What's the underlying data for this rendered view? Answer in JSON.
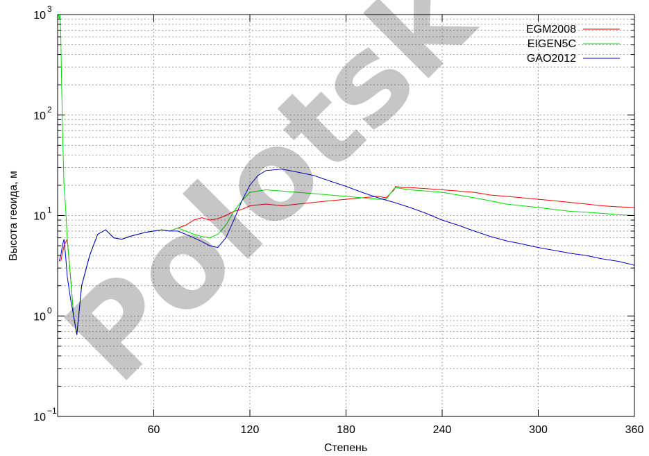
{
  "chart_data": {
    "type": "line",
    "title": "",
    "xlabel": "Степень",
    "ylabel": "Высота геоида, м",
    "xlim": [
      0,
      360
    ],
    "ylim": [
      0.1,
      1000
    ],
    "yscale": "log",
    "grid": true,
    "legend_position": "top-right",
    "x_ticks": [
      60,
      120,
      180,
      240,
      300,
      360
    ],
    "y_ticks": [
      {
        "value": 0.1,
        "base": "10",
        "exp": "−1"
      },
      {
        "value": 1,
        "base": "10",
        "exp": "0"
      },
      {
        "value": 10,
        "base": "10",
        "exp": "1"
      },
      {
        "value": 100,
        "base": "10",
        "exp": "2"
      },
      {
        "value": 1000,
        "base": "10",
        "exp": "3"
      }
    ],
    "series": [
      {
        "name": "EGM2008",
        "color": "#ff0000",
        "x": [
          2,
          4,
          6,
          8,
          10,
          12,
          15,
          20,
          25,
          30,
          35,
          40,
          45,
          50,
          55,
          60,
          65,
          70,
          75,
          80,
          85,
          90,
          95,
          100,
          105,
          110,
          115,
          120,
          130,
          140,
          150,
          160,
          170,
          180,
          190,
          200,
          205,
          210,
          211,
          215,
          220,
          230,
          240,
          250,
          260,
          270,
          280,
          290,
          300,
          310,
          320,
          330,
          340,
          350,
          360
        ],
        "y": [
          3.5,
          5.0,
          5.8,
          2.5,
          1.0,
          0.65,
          2.0,
          4.0,
          6.5,
          7.2,
          6.0,
          5.8,
          6.2,
          6.5,
          6.8,
          7.0,
          7.2,
          7.0,
          7.5,
          8.0,
          9.0,
          9.5,
          9.0,
          9.3,
          10.0,
          11.0,
          11.5,
          12.5,
          13.0,
          12.5,
          13.0,
          13.5,
          14.0,
          14.5,
          15.0,
          15.5,
          15.0,
          18.0,
          19.5,
          19.0,
          19.0,
          18.5,
          18.0,
          17.5,
          17.0,
          16.0,
          15.5,
          15.0,
          14.5,
          14.0,
          13.5,
          13.0,
          12.5,
          12.2,
          12.0
        ]
      },
      {
        "name": "EIGEN5C",
        "color": "#00dd00",
        "x": [
          0.5,
          1,
          1.5,
          2,
          2.5,
          3,
          4,
          5,
          6,
          8,
          10,
          12,
          15,
          20,
          25,
          30,
          35,
          40,
          45,
          50,
          55,
          60,
          65,
          70,
          75,
          80,
          85,
          90,
          95,
          100,
          105,
          110,
          115,
          120,
          130,
          140,
          150,
          160,
          170,
          180,
          190,
          200,
          205,
          210,
          211,
          215,
          220,
          230,
          240,
          250,
          260,
          270,
          280,
          290,
          300,
          310,
          320,
          330,
          340,
          350,
          360
        ],
        "y": [
          1000,
          900,
          1000,
          600,
          200,
          80,
          20,
          12,
          6.0,
          2.5,
          1.0,
          0.65,
          2.0,
          4.0,
          6.5,
          7.2,
          6.0,
          5.8,
          6.2,
          6.5,
          6.8,
          7.0,
          7.2,
          7.0,
          7.5,
          7.0,
          6.5,
          6.2,
          6.0,
          6.5,
          8.0,
          11.0,
          14.0,
          17.0,
          18.0,
          17.5,
          17.0,
          16.5,
          16.0,
          15.5,
          15.0,
          14.5,
          14.5,
          18.5,
          19.0,
          18.5,
          18.0,
          17.5,
          17.0,
          16.0,
          15.0,
          14.0,
          13.0,
          12.5,
          12.0,
          11.5,
          11.0,
          10.8,
          10.5,
          10.2,
          10.0
        ]
      },
      {
        "name": "GAO2012",
        "color": "#0000cc",
        "x": [
          1,
          2,
          3,
          4,
          5,
          6,
          8,
          10,
          12,
          15,
          20,
          25,
          30,
          35,
          40,
          45,
          50,
          55,
          60,
          65,
          70,
          75,
          80,
          85,
          90,
          95,
          100,
          105,
          110,
          115,
          120,
          125,
          130,
          140,
          150,
          160,
          170,
          180,
          190,
          200,
          210,
          220,
          230,
          240,
          250,
          260,
          270,
          280,
          290,
          300,
          310,
          320,
          330,
          340,
          350,
          360
        ],
        "y": [
          3.5,
          4.0,
          5.0,
          5.8,
          4.0,
          2.5,
          1.5,
          1.0,
          0.65,
          2.0,
          4.0,
          6.5,
          7.2,
          6.0,
          5.8,
          6.2,
          6.5,
          6.8,
          7.0,
          7.2,
          7.0,
          7.0,
          6.5,
          6.0,
          5.5,
          5.0,
          4.8,
          6.0,
          9.0,
          14.0,
          20.0,
          25.0,
          28.0,
          29.0,
          27.0,
          25.0,
          22.0,
          19.5,
          17.0,
          15.0,
          13.5,
          12.0,
          10.5,
          9.0,
          8.0,
          7.0,
          6.2,
          5.6,
          5.2,
          4.8,
          4.5,
          4.2,
          4.0,
          3.7,
          3.5,
          3.2
        ]
      }
    ],
    "annotations": [
      {
        "text": "Polotsk",
        "kind": "watermark"
      }
    ]
  }
}
